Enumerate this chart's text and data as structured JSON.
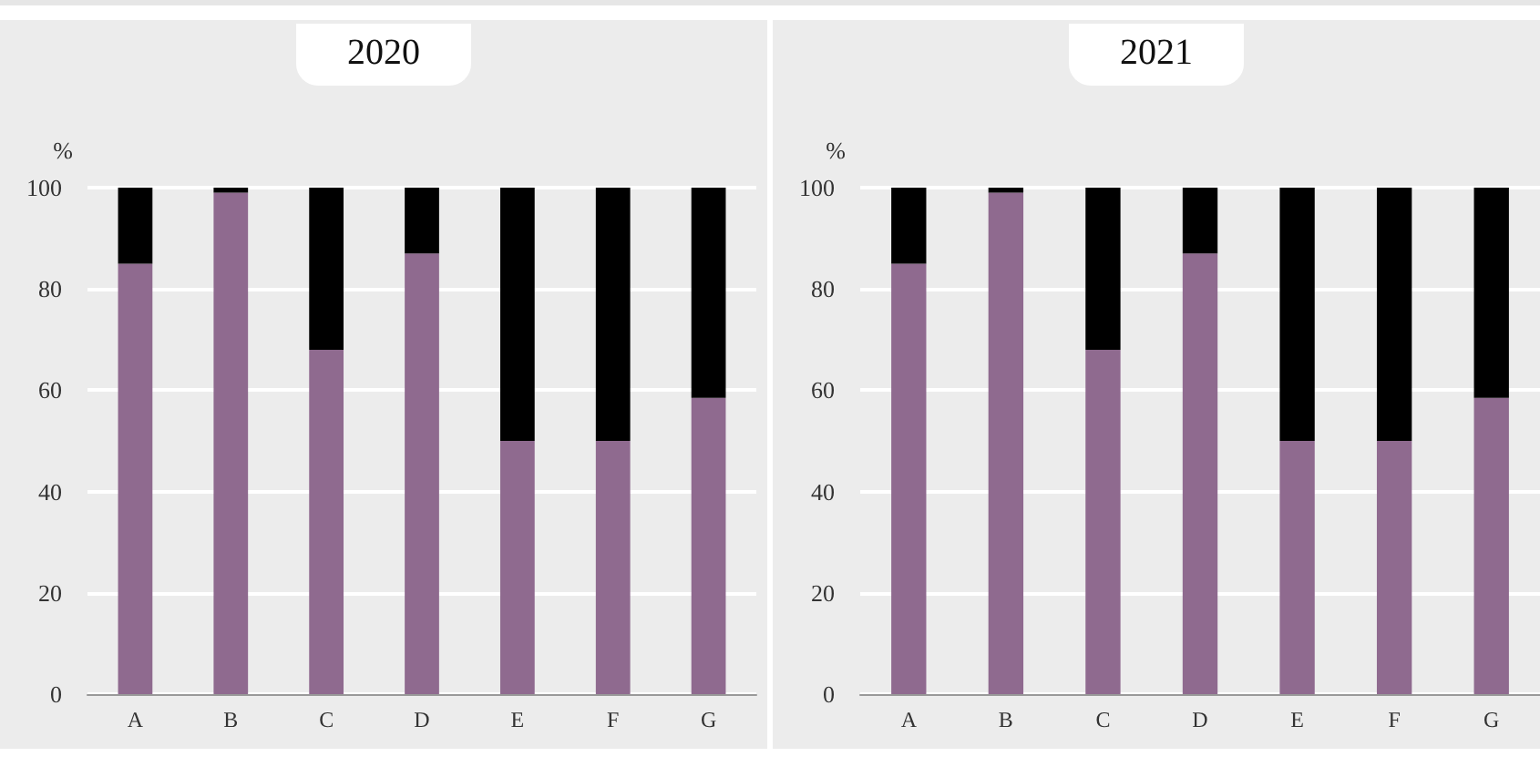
{
  "chart_data": [
    {
      "type": "bar",
      "title": "2020",
      "ylabel": "%",
      "categories": [
        "A",
        "B",
        "C",
        "D",
        "E",
        "F",
        "G"
      ],
      "stacked": true,
      "ylim": [
        0,
        100
      ],
      "yticks": [
        0,
        20,
        40,
        60,
        80,
        100
      ],
      "grid": "y",
      "series": [
        {
          "color": "#8f6a8f",
          "values": [
            85,
            99,
            68,
            87,
            50,
            50,
            58.5
          ]
        },
        {
          "color": "#000000",
          "values": [
            15,
            1,
            32,
            13,
            50,
            50,
            41.5
          ]
        }
      ]
    },
    {
      "type": "bar",
      "title": "2021",
      "ylabel": "%",
      "categories": [
        "A",
        "B",
        "C",
        "D",
        "E",
        "F",
        "G"
      ],
      "stacked": true,
      "ylim": [
        0,
        100
      ],
      "yticks": [
        0,
        20,
        40,
        60,
        80,
        100
      ],
      "grid": "y",
      "series": [
        {
          "color": "#8f6a8f",
          "values": [
            85,
            99,
            68,
            87,
            50,
            50,
            58.5
          ]
        },
        {
          "color": "#000000",
          "values": [
            15,
            1,
            32,
            13,
            50,
            50,
            41.5
          ]
        }
      ]
    }
  ]
}
